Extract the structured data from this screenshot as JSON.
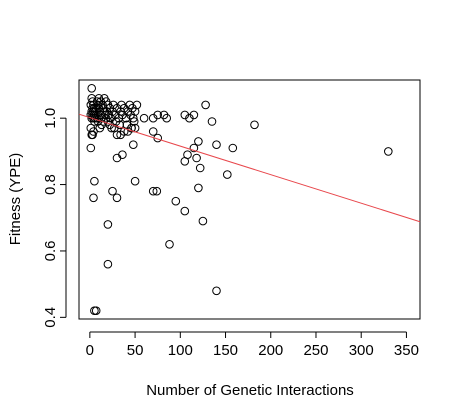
{
  "chart_data": {
    "type": "scatter",
    "title": "",
    "xlabel": "Number of Genetic Interactions",
    "ylabel": "Fitness (YPE)",
    "xlim": [
      -12,
      365
    ],
    "ylim": [
      0.395,
      1.115
    ],
    "xticks": [
      0,
      50,
      100,
      150,
      200,
      250,
      300,
      350
    ],
    "xtick_labels": [
      "0",
      "50",
      "100",
      "150",
      "200",
      "250",
      "300",
      "350"
    ],
    "yticks": [
      0.4,
      0.6,
      0.8,
      1.0
    ],
    "ytick_labels": [
      "0.4",
      "0.6",
      "0.8",
      "1.0"
    ],
    "grid": false,
    "legend": "none",
    "marker": "open-circle",
    "point_color": "#000000",
    "regression_line": {
      "color": "#e8474c",
      "x": [
        -12,
        365
      ],
      "y": [
        1.012,
        0.688
      ]
    },
    "points": [
      [
        2,
        1.09
      ],
      [
        2,
        1.06
      ],
      [
        3,
        1.05
      ],
      [
        4,
        1.04
      ],
      [
        1,
        1.04
      ],
      [
        5,
        1.03
      ],
      [
        3,
        1.03
      ],
      [
        6,
        1.02
      ],
      [
        4,
        1.02
      ],
      [
        2,
        1.02
      ],
      [
        7,
        1.01
      ],
      [
        5,
        1.01
      ],
      [
        3,
        1.01
      ],
      [
        1,
        1.01
      ],
      [
        8,
        1.0
      ],
      [
        6,
        1.0
      ],
      [
        4,
        1.0
      ],
      [
        2,
        1.0
      ],
      [
        9,
        0.99
      ],
      [
        5,
        0.99
      ],
      [
        7,
        1.03
      ],
      [
        8,
        1.05
      ],
      [
        9,
        1.04
      ],
      [
        10,
        1.03
      ],
      [
        11,
        1.02
      ],
      [
        12,
        1.01
      ],
      [
        13,
        1.0
      ],
      [
        10,
        1.06
      ],
      [
        12,
        1.05
      ],
      [
        14,
        1.04
      ],
      [
        15,
        1.03
      ],
      [
        16,
        1.02
      ],
      [
        17,
        1.01
      ],
      [
        18,
        1.0
      ],
      [
        15,
        0.99
      ],
      [
        13,
        0.98
      ],
      [
        11,
        0.97
      ],
      [
        16,
        1.06
      ],
      [
        18,
        1.05
      ],
      [
        20,
        1.04
      ],
      [
        22,
        1.03
      ],
      [
        19,
        1.02
      ],
      [
        21,
        1.01
      ],
      [
        20,
        0.99
      ],
      [
        22,
        0.98
      ],
      [
        24,
        0.97
      ],
      [
        23,
        1.0
      ],
      [
        25,
        1.02
      ],
      [
        26,
        1.04
      ],
      [
        28,
        1.01
      ],
      [
        30,
        1.03
      ],
      [
        29,
        0.99
      ],
      [
        27,
        0.97
      ],
      [
        32,
        1.0
      ],
      [
        34,
        1.02
      ],
      [
        33,
        0.98
      ],
      [
        35,
        1.04
      ],
      [
        36,
        1.01
      ],
      [
        38,
        1.03
      ],
      [
        40,
        1.0
      ],
      [
        42,
        1.02
      ],
      [
        41,
        0.98
      ],
      [
        44,
        1.04
      ],
      [
        45,
        1.01
      ],
      [
        47,
        1.03
      ],
      [
        48,
        1.0
      ],
      [
        50,
        1.02
      ],
      [
        52,
        1.04
      ],
      [
        49,
        0.99
      ],
      [
        46,
        0.97
      ],
      [
        1,
        0.97
      ],
      [
        2,
        0.95
      ],
      [
        3,
        0.95
      ],
      [
        1,
        0.91
      ],
      [
        4,
        0.96
      ],
      [
        30,
        0.95
      ],
      [
        34,
        0.95
      ],
      [
        38,
        0.96
      ],
      [
        42,
        0.96
      ],
      [
        46,
        0.97
      ],
      [
        30,
        0.88
      ],
      [
        36,
        0.89
      ],
      [
        48,
        0.92
      ],
      [
        50,
        0.97
      ],
      [
        60,
        1.0
      ],
      [
        70,
        1.0
      ],
      [
        75,
        1.01
      ],
      [
        82,
        1.01
      ],
      [
        85,
        1.0
      ],
      [
        70,
        0.96
      ],
      [
        75,
        0.94
      ],
      [
        105,
        1.01
      ],
      [
        110,
        1.0
      ],
      [
        115,
        1.01
      ],
      [
        128,
        1.04
      ],
      [
        135,
        0.99
      ],
      [
        120,
        0.93
      ],
      [
        115,
        0.91
      ],
      [
        108,
        0.89
      ],
      [
        105,
        0.87
      ],
      [
        118,
        0.88
      ],
      [
        158,
        0.91
      ],
      [
        140,
        0.92
      ],
      [
        182,
        0.98
      ],
      [
        122,
        0.85
      ],
      [
        152,
        0.83
      ],
      [
        120,
        0.79
      ],
      [
        5,
        0.81
      ],
      [
        50,
        0.81
      ],
      [
        70,
        0.78
      ],
      [
        74,
        0.78
      ],
      [
        25,
        0.78
      ],
      [
        30,
        0.76
      ],
      [
        4,
        0.76
      ],
      [
        95,
        0.75
      ],
      [
        105,
        0.72
      ],
      [
        125,
        0.69
      ],
      [
        20,
        0.68
      ],
      [
        88,
        0.62
      ],
      [
        20,
        0.56
      ],
      [
        140,
        0.48
      ],
      [
        5,
        0.42
      ],
      [
        7,
        0.42
      ],
      [
        330,
        0.9
      ]
    ]
  }
}
